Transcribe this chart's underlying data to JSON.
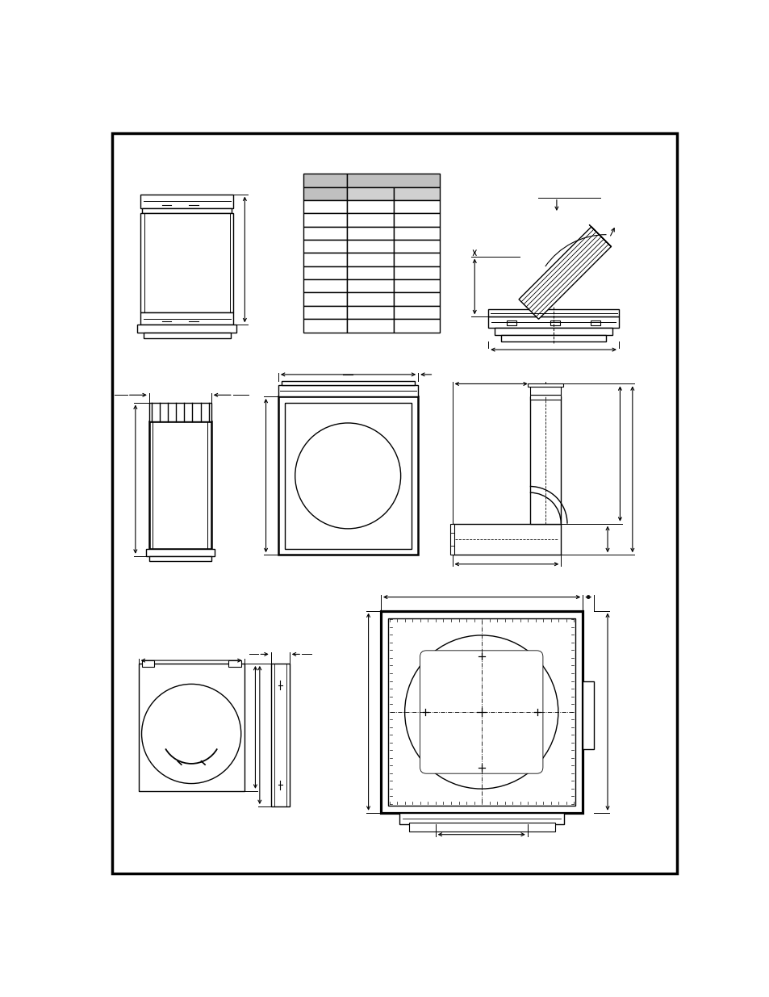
{
  "bg_color": "#ffffff",
  "border_color": "#000000",
  "line_color": "#000000",
  "gray_fill": "#c0c0c0",
  "light_gray": "#d0d0d0",
  "hatch_gray": "#b0b0b0"
}
